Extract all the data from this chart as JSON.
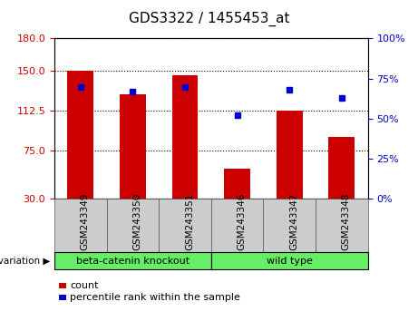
{
  "title": "GDS3322 / 1455453_at",
  "categories": [
    "GSM243349",
    "GSM243350",
    "GSM243351",
    "GSM243346",
    "GSM243347",
    "GSM243348"
  ],
  "bar_values": [
    150,
    128,
    146,
    58,
    113,
    88
  ],
  "percentile_values": [
    70,
    67,
    70,
    52,
    68,
    63
  ],
  "bar_color": "#cc0000",
  "dot_color": "#0000cc",
  "ylim_left": [
    30,
    180
  ],
  "ylim_right": [
    0,
    100
  ],
  "left_yticks": [
    30,
    75,
    112.5,
    150,
    180
  ],
  "right_yticks": [
    0,
    25,
    50,
    75,
    100
  ],
  "groups": [
    {
      "label": "beta-catenin knockout",
      "indices": [
        0,
        1,
        2
      ],
      "color": "#66ee66"
    },
    {
      "label": "wild type",
      "indices": [
        3,
        4,
        5
      ],
      "color": "#66ee66"
    }
  ],
  "legend_count_label": "count",
  "legend_percentile_label": "percentile rank within the sample",
  "bg_color": "#ffffff",
  "plot_bg_color": "#ffffff",
  "xtick_bg_color": "#cccccc",
  "tick_label_color_left": "#cc0000",
  "tick_label_color_right": "#0000cc",
  "bar_width": 0.5,
  "xlabel_rotation": -90
}
